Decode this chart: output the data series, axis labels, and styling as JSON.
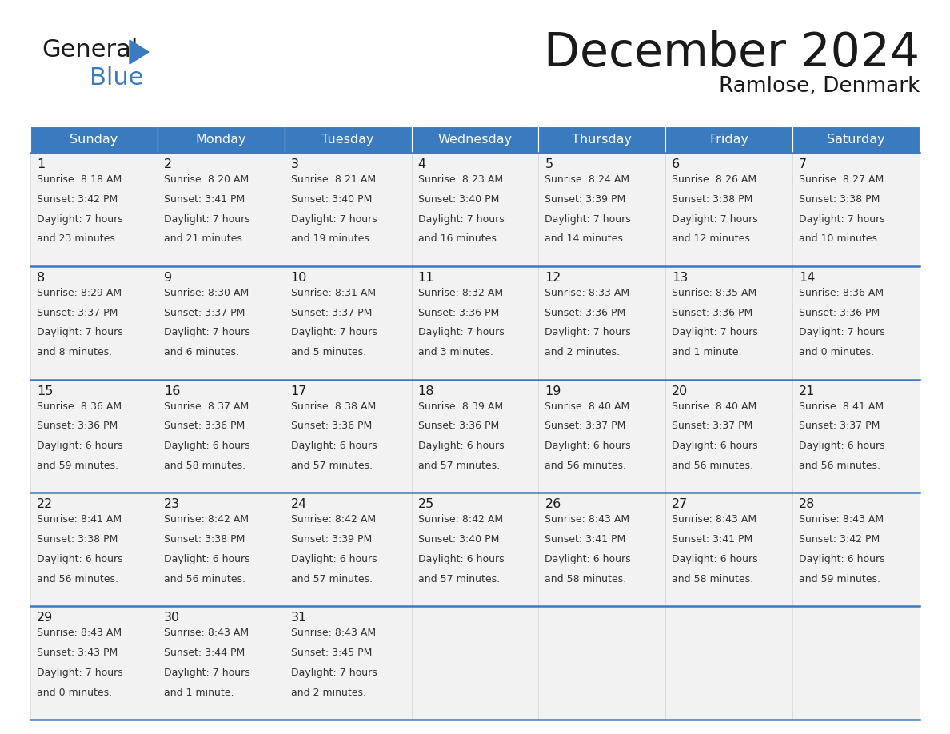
{
  "title": "December 2024",
  "subtitle": "Ramlose, Denmark",
  "header_color": "#3a7abf",
  "header_text_color": "#ffffff",
  "cell_bg_even": "#f0f0f0",
  "cell_bg_odd": "#f8f8f8",
  "text_color": "#222222",
  "border_color": "#3a7abf",
  "line_color": "#cccccc",
  "days_of_week": [
    "Sunday",
    "Monday",
    "Tuesday",
    "Wednesday",
    "Thursday",
    "Friday",
    "Saturday"
  ],
  "weeks": [
    [
      {
        "day": "1",
        "sunrise": "8:18 AM",
        "sunset": "3:42 PM",
        "daylight_h": "7 hours",
        "daylight_m": "and 23 minutes."
      },
      {
        "day": "2",
        "sunrise": "8:20 AM",
        "sunset": "3:41 PM",
        "daylight_h": "7 hours",
        "daylight_m": "and 21 minutes."
      },
      {
        "day": "3",
        "sunrise": "8:21 AM",
        "sunset": "3:40 PM",
        "daylight_h": "7 hours",
        "daylight_m": "and 19 minutes."
      },
      {
        "day": "4",
        "sunrise": "8:23 AM",
        "sunset": "3:40 PM",
        "daylight_h": "7 hours",
        "daylight_m": "and 16 minutes."
      },
      {
        "day": "5",
        "sunrise": "8:24 AM",
        "sunset": "3:39 PM",
        "daylight_h": "7 hours",
        "daylight_m": "and 14 minutes."
      },
      {
        "day": "6",
        "sunrise": "8:26 AM",
        "sunset": "3:38 PM",
        "daylight_h": "7 hours",
        "daylight_m": "and 12 minutes."
      },
      {
        "day": "7",
        "sunrise": "8:27 AM",
        "sunset": "3:38 PM",
        "daylight_h": "7 hours",
        "daylight_m": "and 10 minutes."
      }
    ],
    [
      {
        "day": "8",
        "sunrise": "8:29 AM",
        "sunset": "3:37 PM",
        "daylight_h": "7 hours",
        "daylight_m": "and 8 minutes."
      },
      {
        "day": "9",
        "sunrise": "8:30 AM",
        "sunset": "3:37 PM",
        "daylight_h": "7 hours",
        "daylight_m": "and 6 minutes."
      },
      {
        "day": "10",
        "sunrise": "8:31 AM",
        "sunset": "3:37 PM",
        "daylight_h": "7 hours",
        "daylight_m": "and 5 minutes."
      },
      {
        "day": "11",
        "sunrise": "8:32 AM",
        "sunset": "3:36 PM",
        "daylight_h": "7 hours",
        "daylight_m": "and 3 minutes."
      },
      {
        "day": "12",
        "sunrise": "8:33 AM",
        "sunset": "3:36 PM",
        "daylight_h": "7 hours",
        "daylight_m": "and 2 minutes."
      },
      {
        "day": "13",
        "sunrise": "8:35 AM",
        "sunset": "3:36 PM",
        "daylight_h": "7 hours",
        "daylight_m": "and 1 minute."
      },
      {
        "day": "14",
        "sunrise": "8:36 AM",
        "sunset": "3:36 PM",
        "daylight_h": "7 hours",
        "daylight_m": "and 0 minutes."
      }
    ],
    [
      {
        "day": "15",
        "sunrise": "8:36 AM",
        "sunset": "3:36 PM",
        "daylight_h": "6 hours",
        "daylight_m": "and 59 minutes."
      },
      {
        "day": "16",
        "sunrise": "8:37 AM",
        "sunset": "3:36 PM",
        "daylight_h": "6 hours",
        "daylight_m": "and 58 minutes."
      },
      {
        "day": "17",
        "sunrise": "8:38 AM",
        "sunset": "3:36 PM",
        "daylight_h": "6 hours",
        "daylight_m": "and 57 minutes."
      },
      {
        "day": "18",
        "sunrise": "8:39 AM",
        "sunset": "3:36 PM",
        "daylight_h": "6 hours",
        "daylight_m": "and 57 minutes."
      },
      {
        "day": "19",
        "sunrise": "8:40 AM",
        "sunset": "3:37 PM",
        "daylight_h": "6 hours",
        "daylight_m": "and 56 minutes."
      },
      {
        "day": "20",
        "sunrise": "8:40 AM",
        "sunset": "3:37 PM",
        "daylight_h": "6 hours",
        "daylight_m": "and 56 minutes."
      },
      {
        "day": "21",
        "sunrise": "8:41 AM",
        "sunset": "3:37 PM",
        "daylight_h": "6 hours",
        "daylight_m": "and 56 minutes."
      }
    ],
    [
      {
        "day": "22",
        "sunrise": "8:41 AM",
        "sunset": "3:38 PM",
        "daylight_h": "6 hours",
        "daylight_m": "and 56 minutes."
      },
      {
        "day": "23",
        "sunrise": "8:42 AM",
        "sunset": "3:38 PM",
        "daylight_h": "6 hours",
        "daylight_m": "and 56 minutes."
      },
      {
        "day": "24",
        "sunrise": "8:42 AM",
        "sunset": "3:39 PM",
        "daylight_h": "6 hours",
        "daylight_m": "and 57 minutes."
      },
      {
        "day": "25",
        "sunrise": "8:42 AM",
        "sunset": "3:40 PM",
        "daylight_h": "6 hours",
        "daylight_m": "and 57 minutes."
      },
      {
        "day": "26",
        "sunrise": "8:43 AM",
        "sunset": "3:41 PM",
        "daylight_h": "6 hours",
        "daylight_m": "and 58 minutes."
      },
      {
        "day": "27",
        "sunrise": "8:43 AM",
        "sunset": "3:41 PM",
        "daylight_h": "6 hours",
        "daylight_m": "and 58 minutes."
      },
      {
        "day": "28",
        "sunrise": "8:43 AM",
        "sunset": "3:42 PM",
        "daylight_h": "6 hours",
        "daylight_m": "and 59 minutes."
      }
    ],
    [
      {
        "day": "29",
        "sunrise": "8:43 AM",
        "sunset": "3:43 PM",
        "daylight_h": "7 hours",
        "daylight_m": "and 0 minutes."
      },
      {
        "day": "30",
        "sunrise": "8:43 AM",
        "sunset": "3:44 PM",
        "daylight_h": "7 hours",
        "daylight_m": "and 1 minute."
      },
      {
        "day": "31",
        "sunrise": "8:43 AM",
        "sunset": "3:45 PM",
        "daylight_h": "7 hours",
        "daylight_m": "and 2 minutes."
      },
      null,
      null,
      null,
      null
    ]
  ]
}
